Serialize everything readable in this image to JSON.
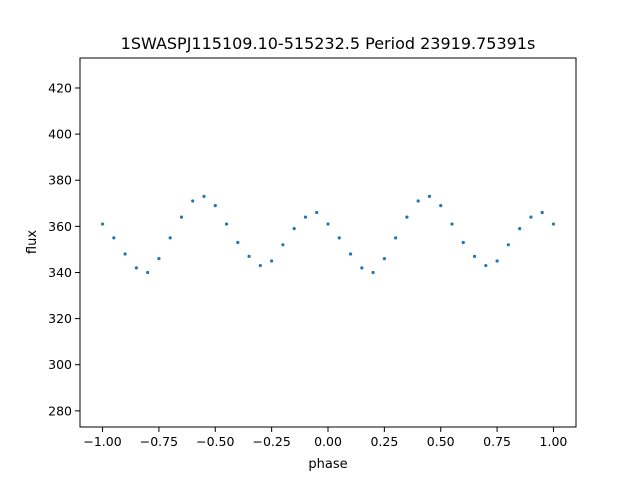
{
  "chart_data": {
    "type": "scatter",
    "title": "1SWASPJ115109.10-515232.5 Period 23919.75391s",
    "xlabel": "phase",
    "ylabel": "flux",
    "xlim": [
      -1.1,
      1.1
    ],
    "ylim": [
      273,
      433
    ],
    "xticks": [
      -1.0,
      -0.75,
      -0.5,
      -0.25,
      0.0,
      0.25,
      0.5,
      0.75,
      1.0
    ],
    "xtick_labels": [
      "−1.00",
      "−0.75",
      "−0.50",
      "−0.25",
      "0.00",
      "0.25",
      "0.50",
      "0.75",
      "1.00"
    ],
    "yticks": [
      280,
      300,
      320,
      340,
      360,
      380,
      400,
      420
    ],
    "ytick_labels": [
      "280",
      "300",
      "320",
      "340",
      "360",
      "380",
      "400",
      "420"
    ],
    "grid": false,
    "marker_color": "#1f77b4",
    "series": [
      {
        "values": [
          [
            -1.0,
            361
          ],
          [
            -0.95,
            355
          ],
          [
            -0.9,
            348
          ],
          [
            -0.85,
            342
          ],
          [
            -0.8,
            340
          ],
          [
            -0.75,
            346
          ],
          [
            -0.7,
            355
          ],
          [
            -0.65,
            364
          ],
          [
            -0.6,
            371
          ],
          [
            -0.55,
            373
          ],
          [
            -0.5,
            369
          ],
          [
            -0.45,
            361
          ],
          [
            -0.4,
            353
          ],
          [
            -0.35,
            347
          ],
          [
            -0.3,
            343
          ],
          [
            -0.25,
            345
          ],
          [
            -0.2,
            352
          ],
          [
            -0.15,
            359
          ],
          [
            -0.1,
            364
          ],
          [
            -0.05,
            366
          ],
          [
            0.0,
            361
          ],
          [
            0.05,
            355
          ],
          [
            0.1,
            348
          ],
          [
            0.15,
            342
          ],
          [
            0.2,
            340
          ],
          [
            0.25,
            346
          ],
          [
            0.3,
            355
          ],
          [
            0.35,
            364
          ],
          [
            0.4,
            371
          ],
          [
            0.45,
            373
          ],
          [
            0.5,
            369
          ],
          [
            0.55,
            361
          ],
          [
            0.6,
            353
          ],
          [
            0.65,
            347
          ],
          [
            0.7,
            343
          ],
          [
            0.75,
            345
          ],
          [
            0.8,
            352
          ],
          [
            0.85,
            359
          ],
          [
            0.9,
            364
          ],
          [
            0.95,
            366
          ],
          [
            1.0,
            361
          ]
        ]
      }
    ]
  }
}
